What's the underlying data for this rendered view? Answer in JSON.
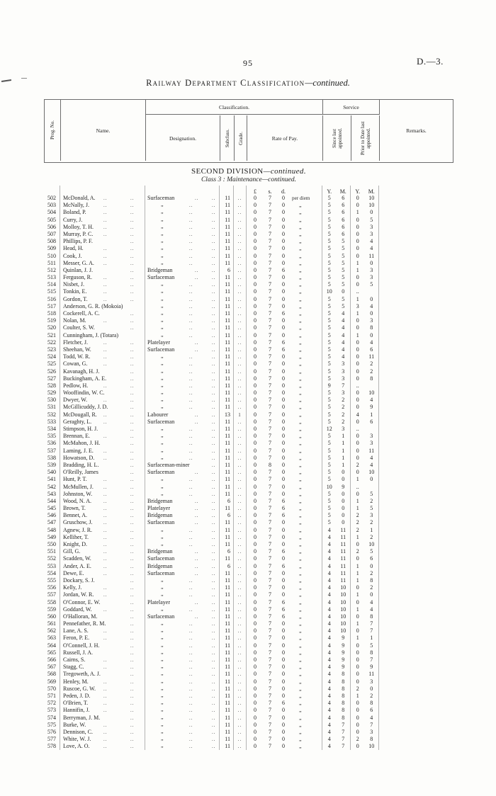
{
  "page": {
    "number": "95",
    "doc_ref": "D.—3.",
    "title_main": "Railway Department Classification",
    "title_cont": "—continued.",
    "section_main": "SECOND DIVISION",
    "section_cont": "—continued.",
    "class_line": "Class 3 : Maintenance—continued."
  },
  "table": {
    "headers": {
      "prog": "Prog. No.",
      "name": "Name.",
      "classification": "Classification.",
      "designation": "Designation.",
      "subclass": "Subclass.",
      "grade": "Grade.",
      "rate": "Rate of Pay.",
      "service": "Service",
      "since": "Since last appointed.",
      "prior": "Prior to Date last appointed.",
      "remarks": "Remarks.",
      "money": [
        "£",
        "s.",
        "d."
      ],
      "ym": [
        "Y.",
        "M."
      ]
    },
    "rows": [
      [
        "502",
        "McDonald, A.",
        "Surfaceman",
        "11",
        "..",
        "0",
        "7",
        "0",
        "per diem",
        "5",
        "6",
        "0",
        "10"
      ],
      [
        "503",
        "McNally, J.",
        "„",
        "11",
        "..",
        "0",
        "7",
        "0",
        "„",
        "5",
        "6",
        "0",
        "10"
      ],
      [
        "504",
        "Boland, P.",
        "„",
        "11",
        "..",
        "0",
        "7",
        "0",
        "„",
        "5",
        "6",
        "1",
        "0"
      ],
      [
        "505",
        "Curry, J.",
        "„",
        "11",
        "..",
        "0",
        "7",
        "0",
        "„",
        "5",
        "6",
        "0",
        "5"
      ],
      [
        "506",
        "Molloy, T. H.",
        "„",
        "11",
        "..",
        "0",
        "7",
        "0",
        "„",
        "5",
        "6",
        "0",
        "3"
      ],
      [
        "507",
        "Murray, P. C.",
        "„",
        "11",
        "..",
        "0",
        "7",
        "0",
        "„",
        "5",
        "6",
        "0",
        "3"
      ],
      [
        "508",
        "Phillips, P. F.",
        "„",
        "11",
        "..",
        "0",
        "7",
        "0",
        "„",
        "5",
        "5",
        "0",
        "4"
      ],
      [
        "509",
        "Head, H.",
        "„",
        "11",
        "..",
        "0",
        "7",
        "0",
        "„",
        "5",
        "5",
        "0",
        "4"
      ],
      [
        "510",
        "Cook, J.",
        "„",
        "11",
        "..",
        "0",
        "7",
        "0",
        "„",
        "5",
        "5",
        "0",
        "11"
      ],
      [
        "511",
        "Messer, G. A.",
        "„",
        "11",
        "..",
        "0",
        "7",
        "0",
        "„",
        "5",
        "5",
        "1",
        "0"
      ],
      [
        "512",
        "Quinlan, J. J.",
        "Bridgeman",
        "6",
        "..",
        "0",
        "7",
        "6",
        "„",
        "5",
        "5",
        "1",
        "3"
      ],
      [
        "513",
        "Ferguson, R.",
        "Surfaceman",
        "11",
        "..",
        "0",
        "7",
        "0",
        "„",
        "5",
        "5",
        "0",
        "3"
      ],
      [
        "514",
        "Nisbet, J.",
        "„",
        "11",
        "..",
        "0",
        "7",
        "0",
        "„",
        "5",
        "5",
        "0",
        "5"
      ],
      [
        "515",
        "Tonkin, E.",
        "„",
        "11",
        "..",
        "0",
        "7",
        "0",
        "„",
        "10",
        "0",
        "..",
        ""
      ],
      [
        "516",
        "Gordon, T.",
        "„",
        "11",
        "..",
        "0",
        "7",
        "0",
        "„",
        "5",
        "5",
        "1",
        "0"
      ],
      [
        "517",
        "Anderson, G. R. (Mokoia)",
        "„",
        "11",
        "..",
        "0",
        "7",
        "0",
        "„",
        "5",
        "5",
        "3",
        "4"
      ],
      [
        "518",
        "Cockerell, A. C.",
        "„",
        "11",
        "..",
        "0",
        "7",
        "6",
        "„",
        "5",
        "4",
        "1",
        "0"
      ],
      [
        "519",
        "Nolan, M.",
        "„",
        "11",
        "..",
        "0",
        "7",
        "0",
        "„",
        "5",
        "4",
        "0",
        "3"
      ],
      [
        "520",
        "Coulter, S. W.",
        "„",
        "11",
        "..",
        "0",
        "7",
        "0",
        "„",
        "5",
        "4",
        "0",
        "8"
      ],
      [
        "521",
        "Cunningham, J. (Totara)",
        "„",
        "11",
        "..",
        "0",
        "7",
        "0",
        "„",
        "5",
        "4",
        "1",
        "0"
      ],
      [
        "522",
        "Fletcher, J.",
        "Platelayer",
        "11",
        "..",
        "0",
        "7",
        "6",
        "„",
        "5",
        "4",
        "0",
        "4"
      ],
      [
        "523",
        "Sheehan, W.",
        "Surfaceman",
        "11",
        "..",
        "0",
        "7",
        "6",
        "„",
        "5",
        "4",
        "0",
        "6"
      ],
      [
        "524",
        "Todd, W. R.",
        "„",
        "11",
        "..",
        "0",
        "7",
        "0",
        "„",
        "5",
        "4",
        "0",
        "11"
      ],
      [
        "525",
        "Cowan, G.",
        "„",
        "11",
        "..",
        "0",
        "7",
        "0",
        "„",
        "5",
        "3",
        "0",
        "2"
      ],
      [
        "526",
        "Kavanagh, H. J.",
        "„",
        "11",
        "..",
        "0",
        "7",
        "0",
        "„",
        "5",
        "3",
        "0",
        "2"
      ],
      [
        "527",
        "Buckingham, A. E.",
        "„",
        "11",
        "..",
        "0",
        "7",
        "0",
        "„",
        "5",
        "3",
        "0",
        "8"
      ],
      [
        "528",
        "Pedlow, H.",
        "„",
        "11",
        "..",
        "0",
        "7",
        "0",
        "„",
        "9",
        "7",
        "..",
        ""
      ],
      [
        "529",
        "Wooffindin, W. C.",
        "„",
        "11",
        "..",
        "0",
        "7",
        "0",
        "„",
        "5",
        "3",
        "0",
        "10"
      ],
      [
        "530",
        "Dwyer, W.",
        "„",
        "11",
        "..",
        "0",
        "7",
        "0",
        "„",
        "5",
        "2",
        "0",
        "4"
      ],
      [
        "531",
        "McGillicuddy, J. D.",
        "„",
        "11",
        "..",
        "0",
        "7",
        "0",
        "„",
        "5",
        "2",
        "0",
        "9"
      ],
      [
        "532",
        "McDougall, R.",
        "Labourer",
        "13",
        "1",
        "0",
        "7",
        "0",
        "„",
        "5",
        "2",
        "4",
        "1"
      ],
      [
        "533",
        "Geraghty, L.",
        "Surfaceman",
        "11",
        "..",
        "0",
        "7",
        "0",
        "„",
        "5",
        "2",
        "0",
        "6"
      ],
      [
        "534",
        "Stimpson, H. J.",
        "„",
        "11",
        "..",
        "0",
        "7",
        "0",
        "„",
        "12",
        "3",
        "..",
        ""
      ],
      [
        "535",
        "Brennan, E.",
        "„",
        "11",
        "..",
        "0",
        "7",
        "0",
        "„",
        "5",
        "1",
        "0",
        "3"
      ],
      [
        "536",
        "McMahon, J. H.",
        "„",
        "11",
        "..",
        "0",
        "7",
        "0",
        "„",
        "5",
        "1",
        "0",
        "3"
      ],
      [
        "537",
        "Laming, J. E.",
        "„",
        "11",
        "..",
        "0",
        "7",
        "0",
        "„",
        "5",
        "1",
        "0",
        "11"
      ],
      [
        "538",
        "Howatson, D.",
        "„",
        "11",
        "..",
        "0",
        "7",
        "0",
        "„",
        "5",
        "1",
        "0",
        "4"
      ],
      [
        "539",
        "Bradding, H. L.",
        "Surfaceman-miner",
        "11",
        "..",
        "0",
        "8",
        "0",
        "„",
        "5",
        "1",
        "2",
        "4"
      ],
      [
        "540",
        "O'Reilly, James",
        "Surfaceman",
        "11",
        "..",
        "0",
        "7",
        "0",
        "„",
        "5",
        "0",
        "0",
        "10"
      ],
      [
        "541",
        "Hunt, P. T.",
        "„",
        "11",
        "..",
        "0",
        "7",
        "0",
        "„",
        "5",
        "0",
        "1",
        "0"
      ],
      [
        "542",
        "McMullen, J.",
        "„",
        "11",
        "..",
        "0",
        "7",
        "0",
        "„",
        "10",
        "9",
        "..",
        ""
      ],
      [
        "543",
        "Johnston, W.",
        "„",
        "11",
        "..",
        "0",
        "7",
        "0",
        "„",
        "5",
        "0",
        "0",
        "5"
      ],
      [
        "544",
        "Wood, N. A.",
        "Bridgeman",
        "6",
        "..",
        "0",
        "7",
        "6",
        "„",
        "5",
        "0",
        "1",
        "2"
      ],
      [
        "545",
        "Brown, T.",
        "Platelayer",
        "11",
        "..",
        "0",
        "7",
        "6",
        "„",
        "5",
        "0",
        "1",
        "5"
      ],
      [
        "546",
        "Bennet, A.",
        "Bridgeman",
        "6",
        "..",
        "0",
        "7",
        "6",
        "„",
        "5",
        "0",
        "2",
        "3"
      ],
      [
        "547",
        "Gruschow, J.",
        "Surfaceman",
        "11",
        "..",
        "0",
        "7",
        "0",
        "„",
        "5",
        "0",
        "2",
        "2"
      ],
      [
        "548",
        "Agnew, J. R.",
        "„",
        "11",
        "..",
        "0",
        "7",
        "0",
        "„",
        "4",
        "11",
        "2",
        "1"
      ],
      [
        "549",
        "Kelliher, T.",
        "„",
        "11",
        "..",
        "0",
        "7",
        "0",
        "„",
        "4",
        "11",
        "1",
        "2"
      ],
      [
        "550",
        "Knight, D.",
        "„",
        "11",
        "..",
        "0",
        "7",
        "0",
        "„",
        "4",
        "11",
        "0",
        "10"
      ],
      [
        "551",
        "Gill, G.",
        "Bridgeman",
        "6",
        "..",
        "0",
        "7",
        "6",
        "„",
        "4",
        "11",
        "2",
        "5"
      ],
      [
        "552",
        "Scadden, W.",
        "Surfaceman",
        "11",
        "..",
        "0",
        "7",
        "0",
        "„",
        "4",
        "11",
        "0",
        "6"
      ],
      [
        "553",
        "Ander, A. E.",
        "Bridgeman",
        "6",
        "..",
        "0",
        "7",
        "6",
        "„",
        "4",
        "11",
        "1",
        "0"
      ],
      [
        "554",
        "Dewe, E.",
        "Surfaceman",
        "11",
        "..",
        "0",
        "7",
        "0",
        "„",
        "4",
        "11",
        "1",
        "2"
      ],
      [
        "555",
        "Dockary, S. J.",
        "„",
        "11",
        "..",
        "0",
        "7",
        "0",
        "„",
        "4",
        "11",
        "1",
        "8"
      ],
      [
        "556",
        "Kelly, J.",
        "„",
        "11",
        "..",
        "0",
        "7",
        "0",
        "„",
        "4",
        "10",
        "0",
        "2"
      ],
      [
        "557",
        "Jordan, W. R.",
        "„",
        "11",
        "..",
        "0",
        "7",
        "0",
        "„",
        "4",
        "10",
        "1",
        "0"
      ],
      [
        "558",
        "O'Connor, E. W.",
        "Platelayer",
        "11",
        "..",
        "0",
        "7",
        "6",
        "„",
        "4",
        "10",
        "0",
        "4"
      ],
      [
        "559",
        "Goddard, W.",
        "„",
        "11",
        "..",
        "0",
        "7",
        "6",
        "„",
        "4",
        "10",
        "1",
        "4"
      ],
      [
        "560",
        "O'Halloran, M.",
        "Surfaceman",
        "11",
        "..",
        "0",
        "7",
        "6",
        "„",
        "4",
        "10",
        "0",
        "8"
      ],
      [
        "561",
        "Pennefather, R. M.",
        "„",
        "11",
        "..",
        "0",
        "7",
        "0",
        "„",
        "4",
        "10",
        "1",
        "7"
      ],
      [
        "562",
        "Lane, A. S.",
        "„",
        "11",
        "..",
        "0",
        "7",
        "0",
        "„",
        "4",
        "10",
        "0",
        "7"
      ],
      [
        "563",
        "Feron, P. E.",
        "„",
        "11",
        "..",
        "0",
        "7",
        "0",
        "„",
        "4",
        "9",
        "1",
        "1"
      ],
      [
        "564",
        "O'Connell, J. H.",
        "„",
        "11",
        "..",
        "0",
        "7",
        "0",
        "„",
        "4",
        "9",
        "0",
        "5"
      ],
      [
        "565",
        "Russell, J. A.",
        "„",
        "11",
        "..",
        "0",
        "7",
        "0",
        "„",
        "4",
        "9",
        "0",
        "8"
      ],
      [
        "566",
        "Cairns, S.",
        "„",
        "11",
        "..",
        "0",
        "7",
        "0",
        "„",
        "4",
        "9",
        "0",
        "7"
      ],
      [
        "567",
        "Stagg, C.",
        "„",
        "11",
        "..",
        "0",
        "7",
        "0",
        "„",
        "4",
        "9",
        "0",
        "9"
      ],
      [
        "568",
        "Tregoweth, A. J.",
        "„",
        "11",
        "..",
        "0",
        "7",
        "0",
        "„",
        "4",
        "8",
        "0",
        "11"
      ],
      [
        "569",
        "Henley, M.",
        "„",
        "11",
        "..",
        "0",
        "7",
        "0",
        "„",
        "4",
        "8",
        "0",
        "3"
      ],
      [
        "570",
        "Ruscoe, G. W.",
        "„",
        "11",
        "..",
        "0",
        "7",
        "0",
        "„",
        "4",
        "8",
        "2",
        "0"
      ],
      [
        "571",
        "Peden, J. D.",
        "„",
        "11",
        "..",
        "0",
        "7",
        "0",
        "„",
        "4",
        "8",
        "1",
        "2"
      ],
      [
        "572",
        "O'Brien, T.",
        "„",
        "11",
        "..",
        "0",
        "7",
        "6",
        "„",
        "4",
        "8",
        "0",
        "8"
      ],
      [
        "573",
        "Hannifin, J.",
        "„",
        "11",
        "..",
        "0",
        "7",
        "0",
        "„",
        "4",
        "8",
        "0",
        "6"
      ],
      [
        "574",
        "Berryman, J. M.",
        "„",
        "11",
        "..",
        "0",
        "7",
        "0",
        "„",
        "4",
        "8",
        "0",
        "4"
      ],
      [
        "575",
        "Burke, W.",
        "„",
        "11",
        "..",
        "0",
        "7",
        "0",
        "„",
        "4",
        "7",
        "0",
        "7"
      ],
      [
        "576",
        "Dennison, C.",
        "„",
        "11",
        "..",
        "0",
        "7",
        "0",
        "„",
        "4",
        "7",
        "0",
        "3"
      ],
      [
        "577",
        "White, W. J.",
        "„",
        "11",
        "..",
        "0",
        "7",
        "0",
        "„",
        "4",
        "7",
        "2",
        "8"
      ],
      [
        "578",
        "Love, A. O.",
        "„",
        "11",
        "..",
        "0",
        "7",
        "0",
        "„",
        "4",
        "7",
        "0",
        "10"
      ]
    ]
  }
}
